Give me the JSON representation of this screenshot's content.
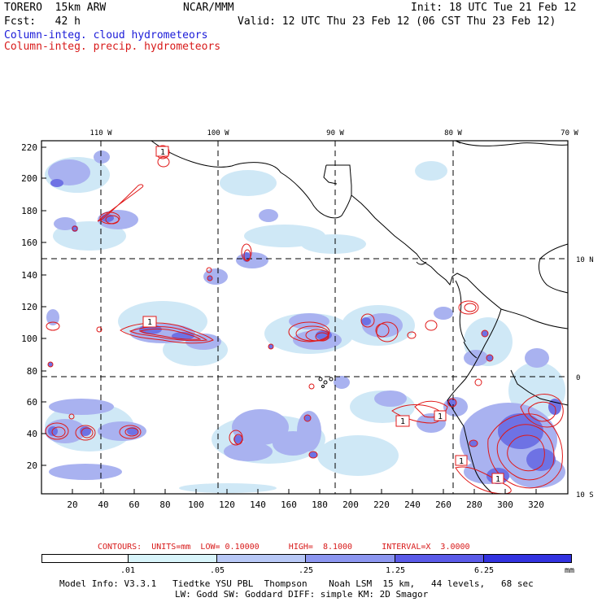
{
  "header": {
    "model_name": "TORERO  15km ARW",
    "center": "NCAR/MMM",
    "init": "Init: 18 UTC Tue 21 Feb 12",
    "forecast": "Fcst:   42 h",
    "valid": "Valid: 12 UTC Thu 23 Feb 12 (06 CST Thu 23 Feb 12)",
    "field_cloud": "Column-integ. cloud hydrometeors",
    "field_precip": "Column-integ. precip. hydrometeors"
  },
  "map": {
    "top_lon_labels": [
      "110 W",
      "100 W",
      "90 W",
      "80 W",
      "70 W"
    ],
    "right_lat_labels": [
      "10 N",
      "0",
      "10 S"
    ],
    "y_ticks": [
      "220",
      "200",
      "180",
      "160",
      "140",
      "120",
      "100",
      "80",
      "60",
      "40",
      "20"
    ],
    "x_ticks": [
      "20",
      "40",
      "60",
      "80",
      "100",
      "120",
      "140",
      "160",
      "180",
      "200",
      "220",
      "240",
      "260",
      "280",
      "300",
      "320"
    ],
    "contour_labels": [
      "1",
      "1",
      "1",
      "1",
      "1",
      "1"
    ]
  },
  "contour_info": {
    "label": "CONTOURS:  UNITS=mm  LOW= 0.10000      HIGH=  8.1000      INTERVAL=X  3.0000"
  },
  "colorbar": {
    "boundaries": [
      ".01",
      ".05",
      ".25",
      "1.25",
      "6.25"
    ],
    "units": "mm",
    "colors": [
      "#ffffff",
      "#d8f4fa",
      "#b8c8f6",
      "#8c96f0",
      "#5a5ae8",
      "#3232e0"
    ]
  },
  "footer": {
    "line1": "Model Info: V3.3.1   Tiedtke YSU PBL  Thompson    Noah LSM  15 km,   44 levels,   68 sec",
    "line2": "LW: Godd SW: Goddard DIFF: simple KM: 2D Smagor"
  },
  "colors": {
    "cloud_light": "#cfe8f6",
    "cloud_mid": "#a9b2f0",
    "cloud_dark": "#6e72e4",
    "precip": "#e01818",
    "coast": "#000000"
  }
}
